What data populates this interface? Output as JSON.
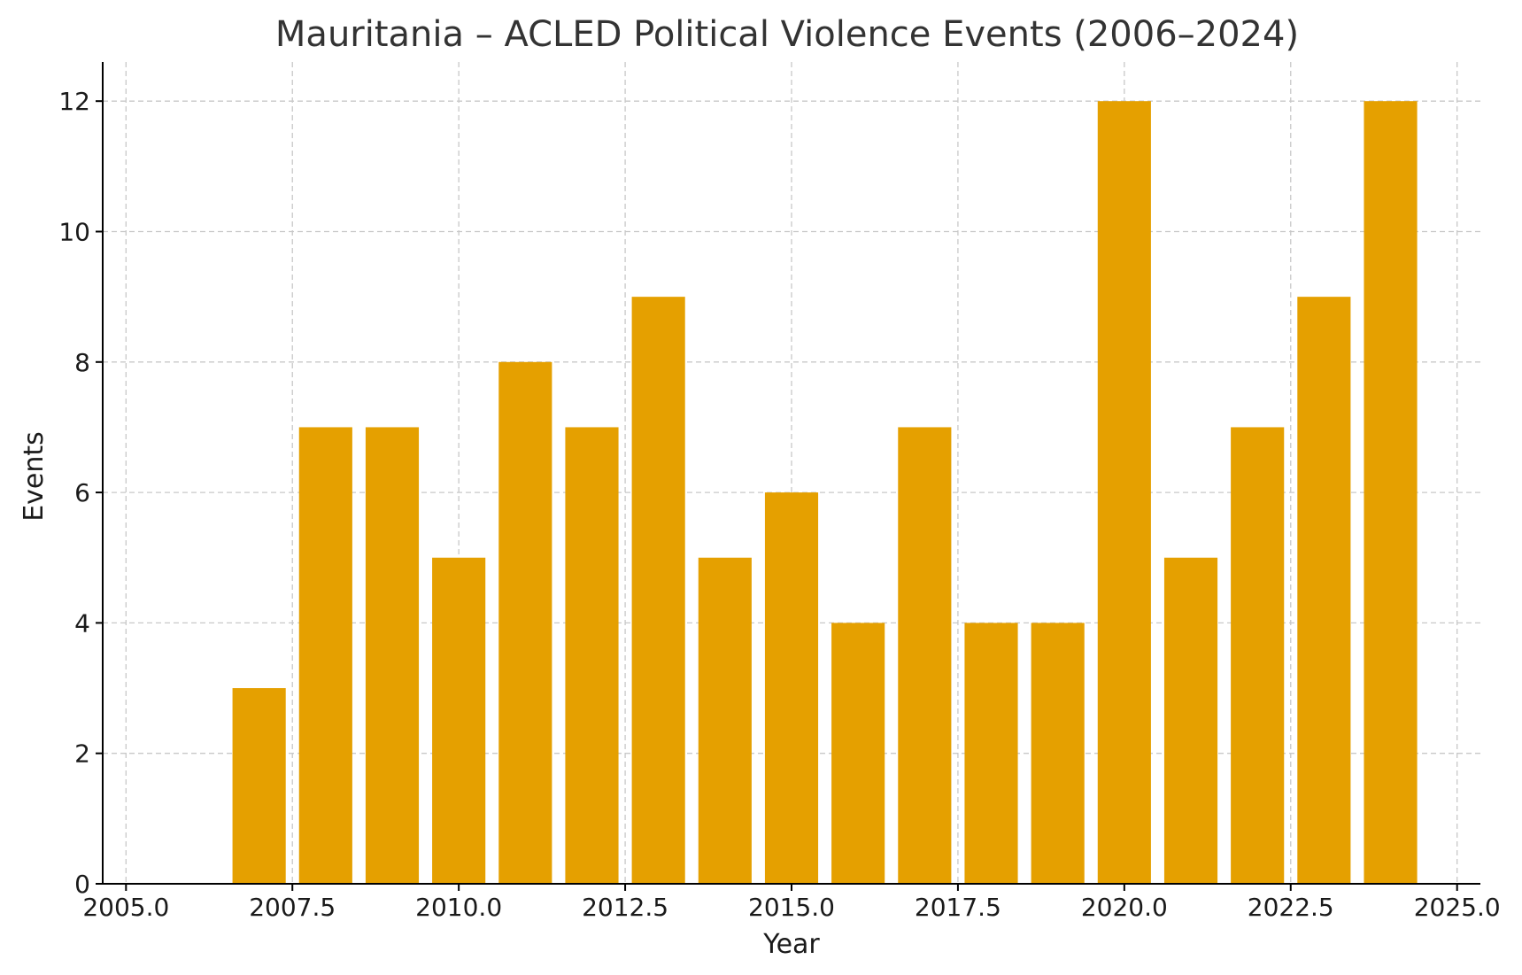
{
  "chart_data": {
    "type": "bar",
    "title": "Mauritania – ACLED Political Violence Events (2006–2024)",
    "xlabel": "Year",
    "ylabel": "Events",
    "x": [
      2006,
      2007,
      2008,
      2009,
      2010,
      2011,
      2012,
      2013,
      2014,
      2015,
      2016,
      2017,
      2018,
      2019,
      2020,
      2021,
      2022,
      2023,
      2024
    ],
    "values": [
      0,
      3,
      7,
      7,
      5,
      8,
      7,
      9,
      5,
      6,
      4,
      7,
      4,
      4,
      12,
      5,
      7,
      9,
      12
    ],
    "xlim": [
      2004.65,
      2025.35
    ],
    "ylim": [
      0,
      12.6
    ],
    "xticks": [
      2005.0,
      2007.5,
      2010.0,
      2012.5,
      2015.0,
      2017.5,
      2020.0,
      2022.5,
      2025.0
    ],
    "xtick_labels": [
      "2005.0",
      "2007.5",
      "2010.0",
      "2012.5",
      "2015.0",
      "2017.5",
      "2020.0",
      "2022.5",
      "2025.0"
    ],
    "yticks": [
      0,
      2,
      4,
      6,
      8,
      10,
      12
    ],
    "ytick_labels": [
      "0",
      "2",
      "4",
      "6",
      "8",
      "10",
      "12"
    ],
    "bar_width": 0.8,
    "bar_color": "#e5a000",
    "grid": true,
    "legend": null
  }
}
